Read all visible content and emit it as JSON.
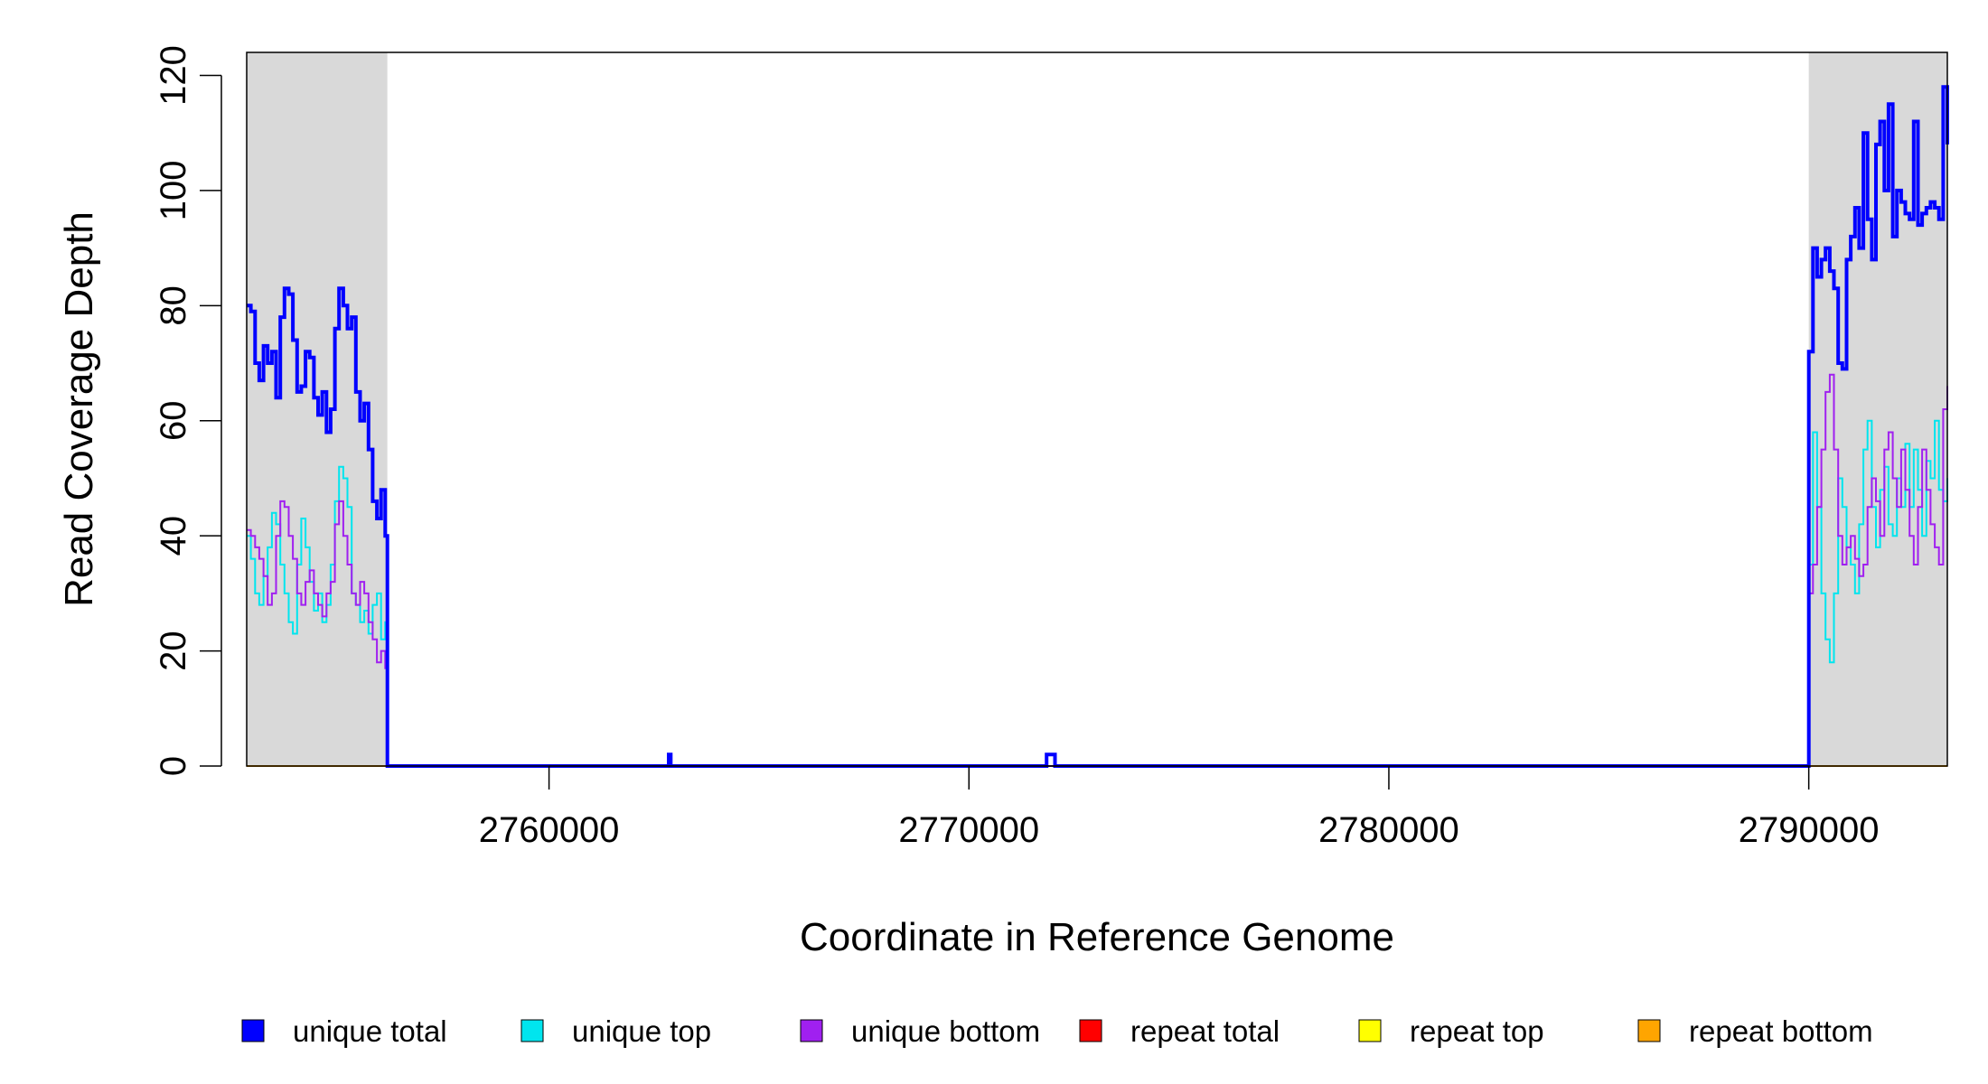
{
  "chart_data": {
    "type": "line",
    "title": "",
    "xlabel": "Coordinate in Reference Genome",
    "ylabel": "Read Coverage Depth",
    "xlim": [
      2752800,
      2793300
    ],
    "ylim": [
      0,
      124
    ],
    "xticks": [
      2760000,
      2770000,
      2780000,
      2790000
    ],
    "yticks": [
      0,
      20,
      40,
      60,
      80,
      100,
      120
    ],
    "grid": false,
    "legend_position": "bottom",
    "shaded_regions": [
      {
        "x": [
          2752800,
          2756150
        ],
        "color": "#d9d9d9"
      },
      {
        "x": [
          2790000,
          2793300
        ],
        "color": "#d9d9d9"
      }
    ],
    "series": [
      {
        "name": "unique total",
        "color": "#0000ff",
        "x": [
          2752800,
          2752900,
          2753000,
          2753100,
          2753200,
          2753300,
          2753400,
          2753500,
          2753600,
          2753700,
          2753800,
          2753900,
          2754000,
          2754100,
          2754200,
          2754300,
          2754400,
          2754500,
          2754600,
          2754700,
          2754800,
          2754900,
          2755000,
          2755100,
          2755200,
          2755300,
          2755400,
          2755500,
          2755600,
          2755700,
          2755800,
          2755900,
          2756000,
          2756100,
          2756150,
          2756200,
          2762800,
          2762850,
          2762900,
          2771800,
          2771850,
          2772000,
          2772050,
          2789900,
          2790000,
          2790100,
          2790200,
          2790300,
          2790400,
          2790500,
          2790600,
          2790700,
          2790800,
          2790900,
          2791000,
          2791100,
          2791200,
          2791300,
          2791400,
          2791500,
          2791600,
          2791700,
          2791800,
          2791900,
          2792000,
          2792100,
          2792200,
          2792300,
          2792400,
          2792500,
          2792600,
          2792700,
          2792800,
          2792900,
          2793000,
          2793100,
          2793200,
          2793300
        ],
        "values": [
          80,
          79,
          70,
          67,
          73,
          70,
          72,
          64,
          78,
          83,
          82,
          74,
          65,
          66,
          72,
          71,
          64,
          61,
          65,
          58,
          62,
          76,
          83,
          80,
          76,
          78,
          65,
          60,
          63,
          55,
          46,
          43,
          48,
          40,
          0,
          0,
          0,
          2,
          0,
          0,
          2,
          2,
          0,
          0,
          72,
          90,
          85,
          88,
          90,
          86,
          83,
          70,
          69,
          88,
          92,
          97,
          90,
          110,
          95,
          88,
          108,
          112,
          100,
          115,
          92,
          100,
          98,
          96,
          95,
          112,
          94,
          96,
          97,
          98,
          97,
          95,
          118,
          108
        ]
      },
      {
        "name": "unique top",
        "color": "#00e5ee",
        "x": [
          2752800,
          2752900,
          2753000,
          2753100,
          2753200,
          2753300,
          2753400,
          2753500,
          2753600,
          2753700,
          2753800,
          2753900,
          2754000,
          2754100,
          2754200,
          2754300,
          2754400,
          2754500,
          2754600,
          2754700,
          2754800,
          2754900,
          2755000,
          2755100,
          2755200,
          2755300,
          2755400,
          2755500,
          2755600,
          2755700,
          2755800,
          2755900,
          2756000,
          2756100,
          2756150,
          2756200,
          2789900,
          2790000,
          2790100,
          2790200,
          2790300,
          2790400,
          2790500,
          2790600,
          2790700,
          2790800,
          2790900,
          2791000,
          2791100,
          2791200,
          2791300,
          2791400,
          2791500,
          2791600,
          2791700,
          2791800,
          2791900,
          2792000,
          2792100,
          2792200,
          2792300,
          2792400,
          2792500,
          2792600,
          2792700,
          2792800,
          2792900,
          2793000,
          2793100,
          2793200,
          2793300
        ],
        "values": [
          40,
          36,
          30,
          28,
          33,
          38,
          44,
          42,
          35,
          30,
          25,
          23,
          35,
          43,
          38,
          32,
          27,
          30,
          25,
          28,
          35,
          46,
          52,
          50,
          45,
          30,
          28,
          25,
          27,
          23,
          28,
          30,
          22,
          25,
          0,
          0,
          0,
          35,
          58,
          45,
          30,
          22,
          18,
          30,
          50,
          45,
          38,
          35,
          30,
          42,
          55,
          60,
          45,
          38,
          48,
          52,
          42,
          40,
          50,
          45,
          56,
          45,
          55,
          48,
          40,
          53,
          50,
          60,
          48,
          46,
          50
        ]
      },
      {
        "name": "unique bottom",
        "color": "#a020f0",
        "x": [
          2752800,
          2752900,
          2753000,
          2753100,
          2753200,
          2753300,
          2753400,
          2753500,
          2753600,
          2753700,
          2753800,
          2753900,
          2754000,
          2754100,
          2754200,
          2754300,
          2754400,
          2754500,
          2754600,
          2754700,
          2754800,
          2754900,
          2755000,
          2755100,
          2755200,
          2755300,
          2755400,
          2755500,
          2755600,
          2755700,
          2755800,
          2755900,
          2756000,
          2756100,
          2756150,
          2756200,
          2789900,
          2790000,
          2790100,
          2790200,
          2790300,
          2790400,
          2790500,
          2790600,
          2790700,
          2790800,
          2790900,
          2791000,
          2791100,
          2791200,
          2791300,
          2791400,
          2791500,
          2791600,
          2791700,
          2791800,
          2791900,
          2792000,
          2792100,
          2792200,
          2792300,
          2792400,
          2792500,
          2792600,
          2792700,
          2792800,
          2792900,
          2793000,
          2793100,
          2793200,
          2793300
        ],
        "values": [
          41,
          40,
          38,
          36,
          33,
          28,
          30,
          40,
          46,
          45,
          40,
          36,
          30,
          28,
          32,
          34,
          30,
          28,
          26,
          30,
          32,
          42,
          46,
          40,
          35,
          30,
          28,
          32,
          30,
          25,
          22,
          18,
          20,
          17,
          0,
          0,
          0,
          30,
          35,
          45,
          55,
          65,
          68,
          55,
          40,
          35,
          38,
          40,
          36,
          33,
          35,
          45,
          50,
          46,
          40,
          55,
          58,
          50,
          45,
          55,
          48,
          40,
          35,
          45,
          55,
          48,
          42,
          38,
          35,
          62,
          66
        ]
      },
      {
        "name": "repeat total",
        "color": "#ff0000",
        "x": [
          2752800,
          2793300
        ],
        "values": [
          0,
          0
        ]
      },
      {
        "name": "repeat top",
        "color": "#ffff00",
        "x": [
          2752800,
          2793300
        ],
        "values": [
          0,
          0
        ]
      },
      {
        "name": "repeat bottom",
        "color": "#ffa500",
        "x": [
          2752800,
          2793300
        ],
        "values": [
          0,
          0
        ]
      }
    ]
  }
}
